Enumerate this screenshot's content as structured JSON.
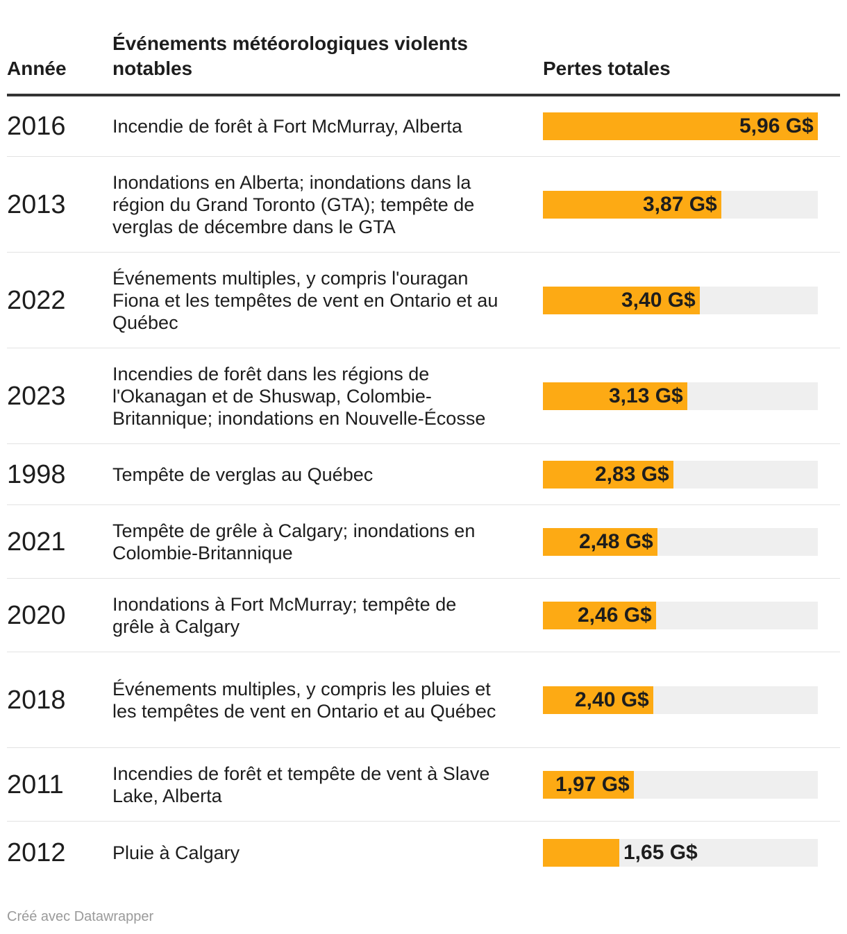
{
  "chart_data": {
    "type": "table",
    "columns": [
      "Année",
      "Événements météorologiques violents notables",
      "Pertes totales"
    ],
    "unit": "G$",
    "max_value": 5.96,
    "rows": [
      {
        "year": "2016",
        "event": "Incendie de forêt à Fort McMurray, Alberta",
        "value": 5.96,
        "label": "5,96 G$"
      },
      {
        "year": "2013",
        "event": "Inondations en Alberta; inondations dans la région du Grand Toronto (GTA); tempête de verglas de décembre dans le GTA",
        "value": 3.87,
        "label": "3,87 G$"
      },
      {
        "year": "2022",
        "event": "Événements multiples, y compris l'ouragan Fiona et les tempêtes de vent en Ontario et au Québec",
        "value": 3.4,
        "label": "3,40 G$"
      },
      {
        "year": "2023",
        "event": "Incendies de forêt dans les régions de l'Okanagan et de Shuswap, Colombie-Britannique; inondations en Nouvelle-Écosse",
        "value": 3.13,
        "label": "3,13 G$"
      },
      {
        "year": "1998",
        "event": "Tempête de verglas au Québec",
        "value": 2.83,
        "label": "2,83 G$"
      },
      {
        "year": "2021",
        "event": "Tempête de grêle à Calgary; inondations en Colombie-Britannique",
        "value": 2.48,
        "label": "2,48 G$"
      },
      {
        "year": "2020",
        "event": "Inondations à Fort McMurray; tempête de grêle à Calgary",
        "value": 2.46,
        "label": "2,46 G$"
      },
      {
        "year": "2018",
        "event": "Événements multiples, y compris les pluies et les tempêtes de vent en Ontario et au Québec",
        "value": 2.4,
        "label": "2,40 G$"
      },
      {
        "year": "2011",
        "event": "Incendies de forêt et tempête de vent à Slave Lake, Alberta",
        "value": 1.97,
        "label": "1,97 G$"
      },
      {
        "year": "2012",
        "event": "Pluie à Calgary",
        "value": 1.65,
        "label": "1,65 G$"
      }
    ]
  },
  "colors": {
    "bar": "#fdaa14",
    "track": "#efefef",
    "text": "#1d1d1d"
  },
  "footer": "Créé avec Datawrapper"
}
